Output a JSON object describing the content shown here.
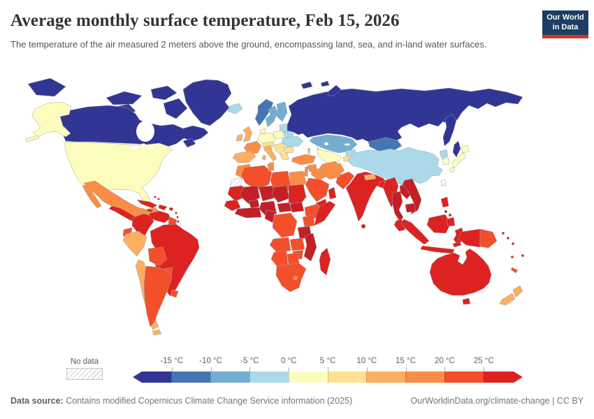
{
  "header": {
    "title": "Average monthly surface temperature, Feb 15, 2026",
    "subtitle": "The temperature of the air measured 2 meters above the ground, encompassing land, sea, and in-land water surfaces.",
    "logo_line1": "Our World",
    "logo_line2": "in Data",
    "logo_bg": "#1d3d63",
    "logo_accent": "#d6352b"
  },
  "footer": {
    "datasource_label": "Data source:",
    "datasource_text": " Contains modified Copernicus Climate Change Service information (2025)",
    "link_text": "OurWorldinData.org/climate-change | CC BY"
  },
  "chart_data": {
    "type": "choropleth",
    "title": "Average monthly surface temperature, Feb 15, 2026",
    "unit": "°C",
    "no_data_label": "No data",
    "tick_labels": [
      "-15 °C",
      "-10 °C",
      "-5 °C",
      "0 °C",
      "5 °C",
      "10 °C",
      "15 °C",
      "20 °C",
      "25 °C"
    ],
    "thresholds": [
      -15,
      -10,
      -5,
      0,
      5,
      10,
      15,
      20,
      25
    ],
    "bin_colors": [
      "#313695",
      "#4575b4",
      "#74add1",
      "#abd9e9",
      "#fcfdbd",
      "#fee090",
      "#fdae61",
      "#f98d45",
      "#f34f2b",
      "#dc2321"
    ],
    "border_color": "#9aa5ab",
    "region_colors": {
      "chukotka-west": "#313695",
      "greenland": "#313695",
      "canada": "#313695",
      "canada-islands-1": "#313695",
      "canada-islands-2": "#313695",
      "baffin-island": "#313695",
      "victoria-island": "#313695",
      "newfoundland": "#313695",
      "russia": "#313695",
      "kamchatka": "#313695",
      "sakhalin": "#313695",
      "svalbard": "#313695",
      "novaya-zemlya": "#313695",
      "franz-josef": "#313695",
      "norway": "#4575b4",
      "mongolia": "#4575b4",
      "sweden": "#74add1",
      "finland": "#74add1",
      "kazakhstan": "#74add1",
      "iceland": "#abd9e9",
      "baltics": "#abd9e9",
      "belarus": "#abd9e9",
      "ukraine": "#abd9e9",
      "china": "#abd9e9",
      "north-korea": "#abd9e9",
      "kyrgyzstan": "#abd9e9",
      "alaska": "#fcfdbd",
      "aleutians": "#fcfdbd",
      "usa": "#fcfdbd",
      "denmark": "#fcfdbd",
      "germany-central": "#fcfdbd",
      "poland": "#fcfdbd",
      "romania": "#fcfdbd",
      "central-asia": "#fcfdbd",
      "japan-hokkaido": "#fcfdbd",
      "japan-honshu": "#fcfdbd",
      "japan-kyushu": "#fcfdbd",
      "south-korea": "#fcfdbd",
      "alps": "#fee090",
      "balkans": "#fee090",
      "bulgaria": "#fee090",
      "greece": "#fee090",
      "tajikistan": "#fee090",
      "uk": "#fdae61",
      "ireland": "#fdae61",
      "iberia": "#fdae61",
      "italy": "#fdae61",
      "sicily": "#fdae61",
      "sardinia": "#fdae61",
      "caucasus": "#fdae61",
      "nepal": "#fdae61",
      "peru": "#fdae61",
      "chile": "#fdae61",
      "tierra-del-fuego": "#fdae61",
      "new-zealand-north": "#fdae61",
      "new-zealand-south": "#fdae61",
      "france": "#f98d45",
      "mexico": "#f98d45",
      "baja": "#f98d45",
      "morocco": "#f98d45",
      "tunisia": "#f98d45",
      "egypt": "#f98d45",
      "turkey": "#f98d45",
      "syria": "#f98d45",
      "levant": "#f98d45",
      "iraq": "#f98d45",
      "iran": "#f98d45",
      "afghanistan": "#f98d45",
      "lesotho": "#f98d45",
      "algeria": "#f34f2b",
      "libya": "#f34f2b",
      "saudi-arabia": "#f34f2b",
      "pakistan": "#f34f2b",
      "ecuador": "#f34f2b",
      "bolivia": "#f34f2b",
      "paraguay": "#f34f2b",
      "argentina": "#f34f2b",
      "uruguay": "#f34f2b",
      "guyanas": "#f34f2b",
      "ethiopia": "#f34f2b",
      "kenya": "#f34f2b",
      "drc": "#f34f2b",
      "angola": "#f34f2b",
      "zambia": "#f34f2b",
      "zimbabwe": "#f34f2b",
      "namibia": "#f34f2b",
      "botswana": "#f34f2b",
      "south-africa": "#f34f2b",
      "papua-new-guinea": "#f34f2b",
      "new-caledonia": "#f34f2b",
      "colombia": "#dc2321",
      "venezuela": "#dc2321",
      "brazil": "#dc2321",
      "central-america": "#dc2321",
      "cuba": "#dc2321",
      "hispaniola": "#dc2321",
      "jamaica": "#dc2321",
      "puerto-rico": "#dc2321",
      "antilles": "#dc2321",
      "bahamas": "#dc2321",
      "mauritania": "#dc2321",
      "senegal": "#dc2321",
      "sudan": "#dc2321",
      "somalia": "#dc2321",
      "yemen": "#dc2321",
      "oman": "#dc2321",
      "india": "#dc2321",
      "bangladesh": "#dc2321",
      "sri-lanka": "#dc2321",
      "myanmar": "#dc2321",
      "malaysia": "#dc2321",
      "sumatra": "#dc2321",
      "java": "#dc2321",
      "borneo": "#dc2321",
      "sulawesi": "#dc2321",
      "timor": "#dc2321",
      "philippines-luzon": "#dc2321",
      "philippines-mid": "#dc2321",
      "philippines-mindanao": "#dc2321",
      "new-guinea-west": "#dc2321",
      "australia": "#dc2321",
      "tasmania": "#dc2321",
      "madagascar": "#dc2321",
      "hainan": "#dc2321",
      "solomons": "#dc2321",
      "vanuatu": "#dc2321",
      "fiji": "#dc2321",
      "mali": "#c41f26",
      "niger": "#c41f26",
      "burkina": "#c41f26",
      "chad": "#c41f26",
      "nigeria": "#c41f26",
      "ghana-coast": "#c41f26",
      "car": "#c41f26",
      "s-sudan": "#c41f26",
      "cameroon-gabon": "#c41f26",
      "tanzania": "#c41f26",
      "mozambique": "#c41f26",
      "thailand": "#c41f26",
      "laos": "#c41f26",
      "vietnam": "#c41f26",
      "cambodia": "#c41f26",
      "western-sahara": "no-data",
      "french-guiana": "no-data",
      "taiwan": "no-data"
    }
  }
}
